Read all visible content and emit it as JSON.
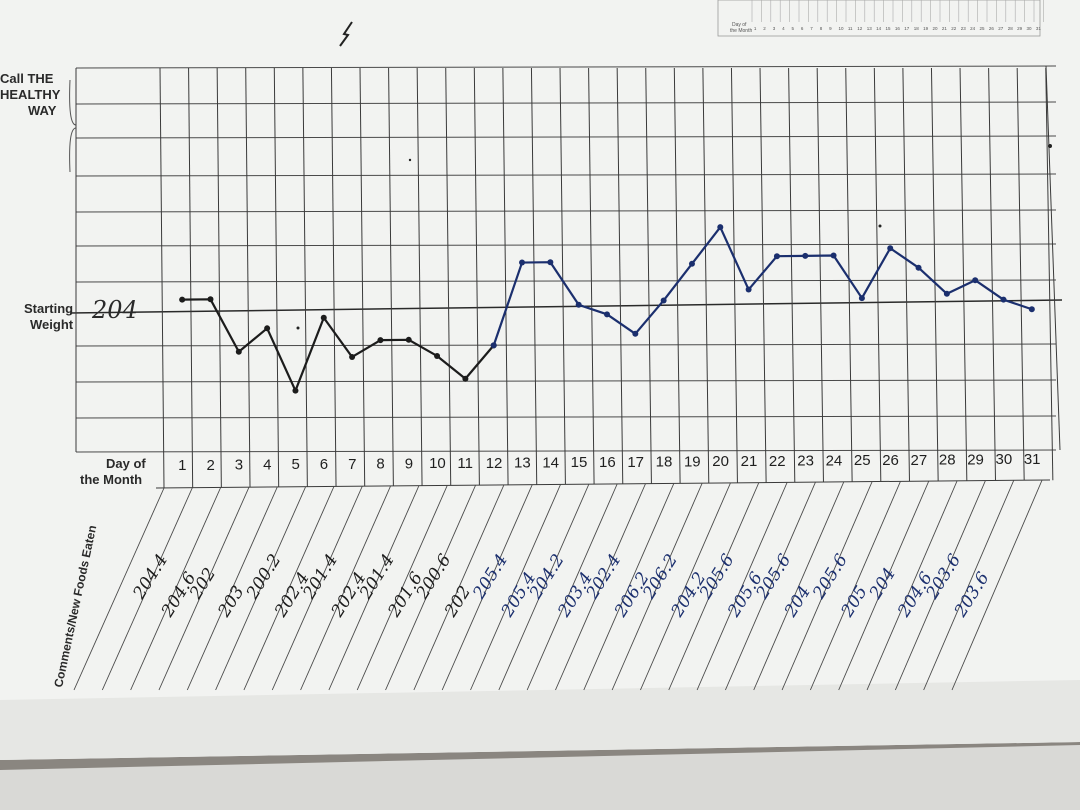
{
  "sheet": {
    "call_label": [
      "Call THE",
      "HEALTHY",
      "WAY"
    ],
    "starting_weight_label": [
      "Starting",
      "Weight"
    ],
    "starting_weight_value": "204",
    "day_label": [
      "Day of",
      "the Month"
    ],
    "comments_label": "Comments/New Foods Eaten",
    "mini_chart_label": [
      "Day of",
      "the Month"
    ]
  },
  "colors": {
    "paper": "#f2f3f1",
    "grid": "#3a3a3a",
    "black_ink": "#1c1c1c",
    "blue_ink": "#1b2f6e"
  },
  "chart_data": {
    "type": "line",
    "title": "",
    "xlabel": "Day of the Month",
    "ylabel": "Starting Weight",
    "x": [
      1,
      2,
      3,
      4,
      5,
      6,
      7,
      8,
      9,
      10,
      11,
      12,
      13,
      14,
      15,
      16,
      17,
      18,
      19,
      20,
      21,
      22,
      23,
      24,
      25,
      26,
      27,
      28,
      29,
      30,
      31
    ],
    "reference_line": 204,
    "ylim": [
      196,
      211
    ],
    "grid": true,
    "series": [
      {
        "ink": "black",
        "x": [
          1,
          2,
          3,
          4,
          5,
          6,
          7,
          8,
          9,
          10,
          11,
          12
        ],
        "values": [
          204.4,
          204.4,
          202.8,
          203.5,
          201.6,
          203.8,
          202.6,
          203.1,
          203.1,
          202.6,
          201.9,
          202.9
        ]
      },
      {
        "ink": "blue",
        "x": [
          12,
          13,
          14,
          15,
          16,
          17,
          18,
          19,
          20,
          21,
          22,
          23,
          24,
          25,
          26,
          27,
          28,
          29,
          30,
          31
        ],
        "values": [
          202.9,
          205.4,
          205.4,
          204.1,
          203.8,
          203.2,
          204.2,
          205.3,
          206.4,
          204.5,
          205.5,
          205.5,
          205.5,
          204.2,
          205.7,
          205.1,
          204.3,
          204.7,
          204.1,
          203.8
        ]
      }
    ],
    "annotations": [
      "204.4",
      "204.6",
      "202",
      "203",
      "200.2",
      "202.4",
      "201.4",
      "202.4",
      "201.4",
      "201.6",
      "200.6",
      "202",
      "205.4",
      "205.4",
      "204.2",
      "203.4",
      "202.4",
      "206.2",
      "206.2",
      "204.2",
      "205.6",
      "205.6",
      "205.6",
      "204",
      "205.6",
      "205",
      "204",
      "204.6",
      "203.6",
      "203.6"
    ]
  }
}
